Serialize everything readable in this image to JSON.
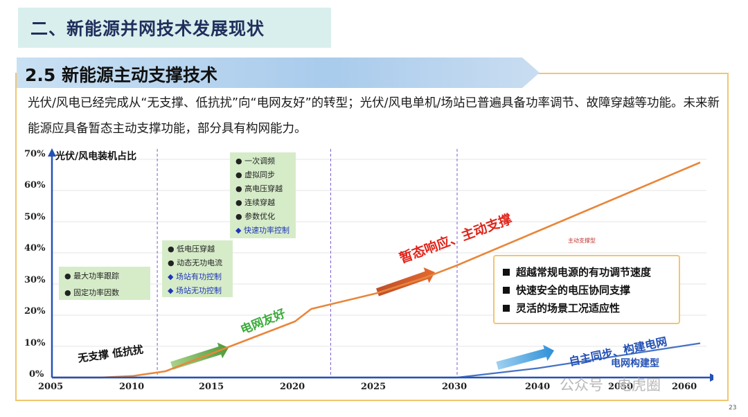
{
  "section_title": "二、新能源并网技术发展现状",
  "subsection_title": "2.5 新能源主动支撑技术",
  "paragraph": "光伏/风电已经完成从“无支撑、低抗扰”向“电网友好”的转型；光伏/风电单机/场站已普遍具备功率调节、故障穿越等功能。未来新能源应具备暂态主动支撑功能，部分具有构网能力。",
  "chart": {
    "ylabel": "光伏/风电装机占比",
    "y_ticks": [
      "70%",
      "60%",
      "50%",
      "40%",
      "30%",
      "20%",
      "10%",
      "0%"
    ],
    "x_ticks": [
      "2005",
      "2010",
      "2015",
      "2020",
      "2025",
      "2030",
      "2040",
      "2050",
      "2060"
    ],
    "phases": [
      "无支撑 低抗扰",
      "电网友好",
      "暂态响应、主动支撑",
      "自主同步、构建电网"
    ],
    "series_labels": [
      "主动支撑型",
      "电网构建型"
    ],
    "feature_boxes": [
      {
        "items": [
          {
            "text": "最大功率跟踪",
            "bullet": "●",
            "color": "#222222"
          },
          {
            "text": "固定功率因数",
            "bullet": "●",
            "color": "#222222"
          }
        ]
      },
      {
        "items": [
          {
            "text": "低电压穿越",
            "bullet": "●",
            "color": "#222222"
          },
          {
            "text": "动态无功电流",
            "bullet": "●",
            "color": "#222222"
          },
          {
            "text": "场站有功控制",
            "bullet": "◆",
            "color": "#1f35b8"
          },
          {
            "text": "场站无功控制",
            "bullet": "◆",
            "color": "#1f35b8"
          }
        ]
      },
      {
        "items": [
          {
            "text": "一次调频",
            "bullet": "●",
            "color": "#222222"
          },
          {
            "text": "虚拟同步",
            "bullet": "●",
            "color": "#222222"
          },
          {
            "text": "高电压穿越",
            "bullet": "●",
            "color": "#222222"
          },
          {
            "text": "连续穿越",
            "bullet": "●",
            "color": "#222222"
          },
          {
            "text": "参数优化",
            "bullet": "●",
            "color": "#222222"
          },
          {
            "text": "快速功率控制",
            "bullet": "◆",
            "color": "#1f35b8"
          }
        ]
      }
    ],
    "legend_items": [
      "超越常规电源的有功调节速度",
      "快速安全的电压协同支撑",
      "灵活的场景工况适应性"
    ]
  },
  "chart_data": {
    "type": "line",
    "ylabel": "光伏/风电装机占比",
    "ylim": [
      0,
      70
    ],
    "series": [
      {
        "name": "主动支撑型",
        "color": "#e8863a",
        "x": [
          2005,
          2008,
          2010,
          2012,
          2015,
          2018,
          2019,
          2020,
          2021,
          2025,
          2028,
          2030,
          2040,
          2050,
          2060
        ],
        "y": [
          0,
          0,
          0.5,
          2,
          8,
          14,
          16,
          18,
          22,
          27,
          32,
          36,
          47,
          58,
          69
        ]
      },
      {
        "name": "电网构建型",
        "color": "#4472c4",
        "x": [
          2005,
          2030,
          2035,
          2040,
          2050,
          2060
        ],
        "y": [
          0,
          0,
          1.5,
          3,
          7,
          11
        ]
      }
    ],
    "accent_colors": {
      "title_band": "#d9efee",
      "sub_band": "#9fc3e6",
      "frame": "#f2c56e",
      "feature_box": "#d6ecc9",
      "phase_red": "#e0241a",
      "phase_green": "#3aab3a",
      "phase_blue": "#2451b5"
    }
  },
  "watermark": "公众号 · 电虎圈",
  "page_number": "23"
}
